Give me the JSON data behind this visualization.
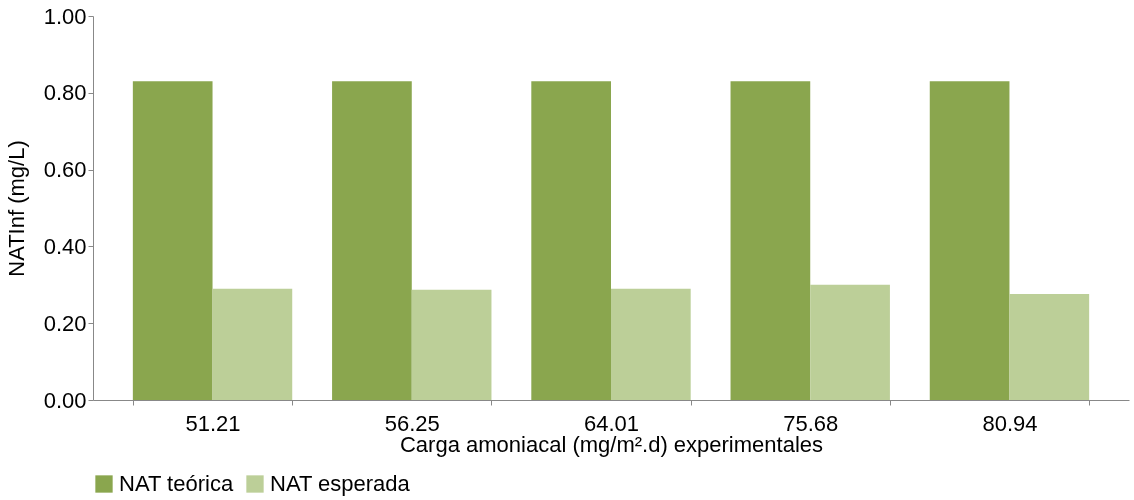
{
  "chart_data": {
    "type": "bar",
    "xlabel": "Carga amoniacal (mg/m².d) experimentales",
    "ylabel": "NATInf (mg/L)",
    "categories": [
      "51.21",
      "56.25",
      "64.01",
      "75.68",
      "80.94"
    ],
    "series": [
      {
        "name": "NAT teórica",
        "color": "#8aa64e",
        "values": [
          0.83,
          0.83,
          0.83,
          0.83,
          0.83
        ]
      },
      {
        "name": "NAT esperada",
        "color": "#bccf98",
        "values": [
          0.29,
          0.287,
          0.29,
          0.3,
          0.276
        ]
      }
    ],
    "ylim": [
      0,
      1
    ],
    "yticks": [
      {
        "value": 0,
        "label": "0.00"
      },
      {
        "value": 0.2,
        "label": "0.20"
      },
      {
        "value": 0.4,
        "label": "0.40"
      },
      {
        "value": 0.6,
        "label": "0.60"
      },
      {
        "value": 0.8,
        "label": "0.80"
      },
      {
        "value": 1,
        "label": "1.00"
      }
    ],
    "grid": false,
    "legend": "bottom"
  }
}
